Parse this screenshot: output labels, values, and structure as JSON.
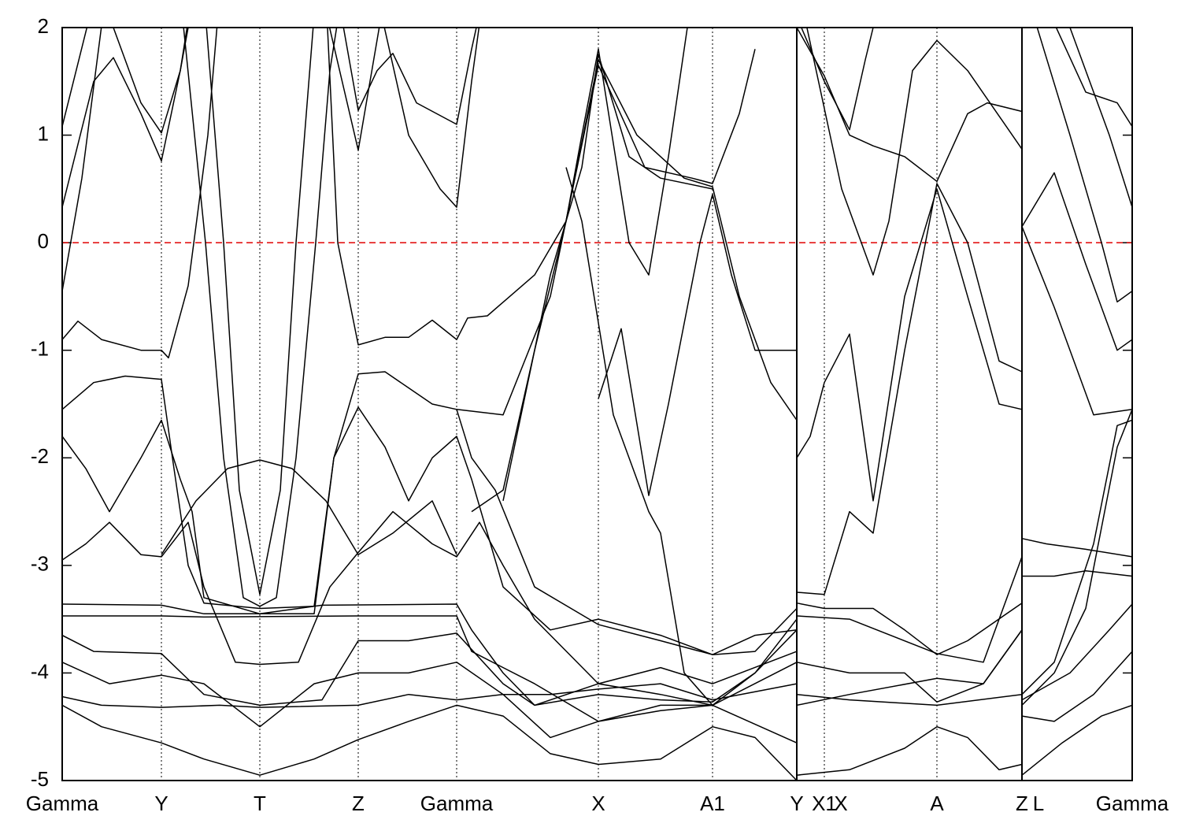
{
  "chart_data": {
    "type": "bands",
    "color": "#000000",
    "fermi_level": 0,
    "fermi_color": "#e00000",
    "xlim": [
      0,
      1359
    ],
    "ylim": [
      -5,
      2
    ],
    "yticks": [
      2,
      1,
      0,
      -1,
      -2,
      -3,
      -4,
      -5
    ],
    "xticks": [
      {
        "value": 0,
        "label": "Gamma"
      },
      {
        "value": 126,
        "label": "Y"
      },
      {
        "value": 251,
        "label": "T"
      },
      {
        "value": 376,
        "label": "Z"
      },
      {
        "value": 501,
        "label": "Gamma"
      },
      {
        "value": 681,
        "label": "X"
      },
      {
        "value": 826,
        "label": "A1"
      },
      {
        "value": 933,
        "label": "Y"
      },
      {
        "value": 968,
        "label": "X1"
      },
      {
        "value": 1111,
        "label": "A"
      },
      {
        "value": 1219,
        "label": "Z"
      },
      {
        "value": 1359,
        "label": "Gamma"
      }
    ],
    "extra_labels": [
      {
        "value": 1240,
        "label": "L"
      },
      {
        "value": 989,
        "label": "X"
      }
    ],
    "breaks": [
      933,
      1219
    ],
    "series": [
      {
        "x": [
          180,
          205,
          225,
          251,
          277,
          297,
          322
        ],
        "values": [
          2.3,
          0,
          -2.3,
          -3.27,
          -2.3,
          0,
          2.3
        ]
      },
      {
        "x": [
          150,
          182,
          205,
          230,
          251,
          272,
          297,
          322,
          340,
          355
        ],
        "values": [
          2.3,
          0,
          -2.0,
          -3.3,
          -3.38,
          -3.3,
          -2.0,
          0,
          1.6,
          2.3
        ]
      },
      {
        "x": [
          0,
          45,
          100,
          126,
          150,
          170
        ],
        "values": [
          1.08,
          2.4,
          1.3,
          1.02,
          1.6,
          2.4
        ]
      },
      {
        "x": [
          0,
          40,
          65,
          100,
          126,
          150,
          165
        ],
        "values": [
          0.33,
          1.5,
          1.72,
          1.2,
          0.76,
          1.6,
          2.3
        ]
      },
      {
        "x": [
          350,
          376,
          400,
          420,
          450,
          501,
          520,
          535
        ],
        "values": [
          2.3,
          1.23,
          1.6,
          1.76,
          1.3,
          1.1,
          1.8,
          2.3
        ]
      },
      {
        "x": [
          330,
          376,
          405
        ],
        "values": [
          2.3,
          0.86,
          2.1
        ]
      },
      {
        "x": [
          0,
          25,
          55
        ],
        "values": [
          -0.45,
          0.6,
          2.3
        ]
      },
      {
        "x": [
          335,
          350,
          376,
          410,
          440,
          470,
          501,
          515,
          540,
          600,
          640,
          681,
          730,
          790,
          826,
          860,
          900,
          933
        ],
        "values": [
          2.3,
          0,
          -0.95,
          -0.88,
          -0.88,
          -0.72,
          -0.9,
          -0.7,
          -0.68,
          -0.3,
          0.2,
          1.7,
          1.0,
          0.6,
          0.52,
          -0.5,
          -1.3,
          -1.65
        ]
      },
      {
        "x": [
          400,
          440,
          480,
          501,
          520,
          535
        ],
        "values": [
          2.3,
          1.0,
          0.5,
          0.33,
          1.5,
          2.3
        ]
      },
      {
        "x": [
          0,
          20,
          50,
          100,
          126,
          135,
          160,
          185,
          200
        ],
        "values": [
          -0.9,
          -0.73,
          -0.9,
          -1.0,
          -1.0,
          -1.07,
          -0.4,
          1.0,
          2.3
        ]
      },
      {
        "x": [
          0,
          40,
          80,
          126,
          140,
          160,
          180,
          251,
          320,
          345,
          376,
          410,
          440,
          470,
          501,
          520,
          550,
          600,
          681,
          760,
          826,
          880,
          933
        ],
        "values": [
          -1.55,
          -1.3,
          -1.24,
          -1.27,
          -2.0,
          -3.0,
          -3.35,
          -3.4,
          -3.38,
          -2.0,
          -1.22,
          -1.2,
          -1.35,
          -1.5,
          -1.55,
          -2.0,
          -2.3,
          -3.2,
          -3.55,
          -3.7,
          -3.83,
          -3.65,
          -3.6
        ]
      },
      {
        "x": [
          0,
          30,
          60,
          100,
          126,
          150,
          165,
          180,
          251,
          320,
          345,
          376,
          410,
          440,
          470,
          501,
          520,
          560,
          620,
          681,
          760,
          826,
          880,
          933
        ],
        "values": [
          -1.8,
          -2.1,
          -2.5,
          -2.0,
          -1.65,
          -2.2,
          -2.5,
          -3.3,
          -3.45,
          -3.45,
          -2.0,
          -1.53,
          -1.9,
          -2.4,
          -2.0,
          -1.8,
          -2.2,
          -3.2,
          -3.6,
          -3.5,
          -3.65,
          -3.83,
          -3.8,
          -3.4
        ]
      },
      {
        "x": [
          126,
          170,
          210,
          251,
          292,
          335,
          376,
          420,
          470,
          501
        ],
        "values": [
          -2.9,
          -2.4,
          -2.1,
          -2.02,
          -2.1,
          -2.4,
          -2.9,
          -2.7,
          -2.4,
          -2.9
        ]
      },
      {
        "x": [
          0,
          30,
          60,
          100,
          126,
          160,
          180,
          220,
          251,
          300,
          340,
          376,
          420,
          470,
          501,
          530,
          560,
          600,
          681,
          760,
          826,
          933
        ],
        "values": [
          -2.95,
          -2.8,
          -2.6,
          -2.9,
          -2.92,
          -2.6,
          -3.2,
          -3.9,
          -3.92,
          -3.9,
          -3.2,
          -2.88,
          -2.5,
          -2.8,
          -2.92,
          -2.6,
          -3.0,
          -3.5,
          -4.1,
          -3.95,
          -4.1,
          -3.8
        ]
      },
      {
        "x": [
          0,
          126,
          180,
          251,
          330,
          501,
          520,
          560,
          600,
          681,
          760,
          826,
          880,
          933
        ],
        "values": [
          -3.36,
          -3.37,
          -3.45,
          -3.45,
          -3.37,
          -3.36,
          -3.6,
          -4.0,
          -4.3,
          -4.2,
          -4.25,
          -4.27,
          -4.0,
          -3.5
        ]
      },
      {
        "x": [
          0,
          126,
          180,
          376,
          501,
          520,
          600,
          681,
          760,
          826,
          880,
          933
        ],
        "values": [
          -3.47,
          -3.47,
          -3.48,
          -3.47,
          -3.47,
          -3.8,
          -4.1,
          -4.45,
          -4.3,
          -4.3,
          -4.0,
          -3.6
        ]
      },
      {
        "x": [
          0,
          40,
          126,
          180,
          251,
          330,
          376,
          440,
          501,
          560,
          600,
          681,
          760,
          826,
          933
        ],
        "values": [
          -3.65,
          -3.8,
          -3.82,
          -4.2,
          -4.3,
          -4.25,
          -3.7,
          -3.7,
          -3.63,
          -4.1,
          -4.3,
          -4.1,
          -4.2,
          -4.3,
          -3.9
        ]
      },
      {
        "x": [
          0,
          60,
          126,
          180,
          251,
          320,
          376,
          440,
          501,
          560,
          620,
          681,
          760,
          826,
          933
        ],
        "values": [
          -3.9,
          -4.1,
          -4.02,
          -4.1,
          -4.5,
          -4.1,
          -4.0,
          -4.0,
          -3.9,
          -4.2,
          -4.6,
          -4.45,
          -4.35,
          -4.3,
          -4.65
        ]
      },
      {
        "x": [
          0,
          50,
          126,
          200,
          251,
          376,
          440,
          501,
          560,
          620,
          681,
          760,
          826,
          933
        ],
        "values": [
          -4.22,
          -4.3,
          -4.32,
          -4.3,
          -4.32,
          -4.3,
          -4.2,
          -4.25,
          -4.2,
          -4.2,
          -4.15,
          -4.1,
          -4.25,
          -4.1
        ]
      },
      {
        "x": [
          0,
          50,
          126,
          180,
          251,
          320,
          376,
          440,
          501,
          560,
          620,
          681,
          760,
          826,
          880,
          933
        ],
        "values": [
          -4.3,
          -4.5,
          -4.65,
          -4.8,
          -4.95,
          -4.8,
          -4.62,
          -4.45,
          -4.3,
          -4.4,
          -4.75,
          -4.85,
          -4.8,
          -4.5,
          -4.6,
          -5
        ]
      },
      {
        "x": [
          501,
          560,
          620,
          681,
          740,
          800,
          826,
          860,
          880
        ],
        "values": [
          -1.55,
          -1.6,
          -0.5,
          1.65,
          0.7,
          0.6,
          0.55,
          1.2,
          1.8
        ]
      },
      {
        "x": [
          560,
          620,
          660,
          681,
          720,
          760,
          826
        ],
        "values": [
          -2.4,
          -0.3,
          0.7,
          1.75,
          0.8,
          0.6,
          0.5
        ]
      },
      {
        "x": [
          681,
          710,
          745,
          770,
          810,
          826,
          850,
          880,
          933
        ],
        "values": [
          -1.45,
          -0.8,
          -2.35,
          -1.5,
          0.0,
          0.45,
          -0.3,
          -1.0,
          -1.0
        ]
      },
      {
        "x": [
          640,
          660,
          700,
          745,
          760,
          790,
          826
        ],
        "values": [
          0.7,
          0.2,
          -1.6,
          -2.5,
          -2.7,
          -4.0,
          -4.3
        ]
      },
      {
        "x": [
          520,
          560,
          600,
          640,
          660,
          681,
          720,
          745,
          770,
          800
        ],
        "values": [
          -2.5,
          -2.3,
          -1.0,
          0.2,
          1.0,
          1.8,
          0.0,
          -0.3,
          0.8,
          2.3
        ]
      },
      {
        "x": [
          933,
          950,
          968,
          1000,
          1030,
          1070,
          1111,
          1150,
          1190,
          1219
        ],
        "values": [
          -2.0,
          -1.8,
          -1.3,
          -0.85,
          -2.4,
          -0.5,
          0.5,
          -0.5,
          -1.5,
          -1.55
        ]
      },
      {
        "x": [
          933,
          968,
          1000,
          1030,
          1070,
          1111,
          1150,
          1190,
          1219
        ],
        "values": [
          -3.25,
          -3.27,
          -2.5,
          -2.7,
          -1.0,
          0.55,
          0.0,
          -1.1,
          -1.2
        ]
      },
      {
        "x": [
          933,
          968,
          1000,
          1020,
          1040
        ],
        "values": [
          2.1,
          1.5,
          1.05,
          1.7,
          2.3
        ]
      },
      {
        "x": [
          933,
          968,
          1000,
          1030,
          1070,
          1111,
          1150,
          1175,
          1219
        ],
        "values": [
          2.0,
          1.55,
          1.0,
          0.9,
          0.8,
          0.57,
          1.2,
          1.3,
          1.22
        ]
      },
      {
        "x": [
          940,
          990,
          1030,
          1050,
          1080,
          1111,
          1150,
          1219
        ],
        "values": [
          2.2,
          0.5,
          -0.3,
          0.2,
          1.6,
          1.88,
          1.6,
          0.87
        ]
      },
      {
        "x": [
          933,
          968,
          1030,
          1070,
          1111,
          1150,
          1219
        ],
        "values": [
          -3.35,
          -3.4,
          -3.4,
          -3.6,
          -3.83,
          -3.7,
          -3.35
        ]
      },
      {
        "x": [
          933,
          1000,
          1111,
          1170,
          1219
        ],
        "values": [
          -3.47,
          -3.5,
          -3.82,
          -3.9,
          -2.92
        ]
      },
      {
        "x": [
          933,
          1000,
          1070,
          1111,
          1170,
          1219
        ],
        "values": [
          -3.9,
          -4.0,
          -4.0,
          -4.27,
          -4.1,
          -3.6
        ]
      },
      {
        "x": [
          933,
          1000,
          1111,
          1219
        ],
        "values": [
          -4.2,
          -4.25,
          -4.3,
          -4.2
        ]
      },
      {
        "x": [
          933,
          1000,
          1070,
          1111,
          1150,
          1190,
          1219
        ],
        "values": [
          -4.95,
          -4.9,
          -4.7,
          -4.5,
          -4.6,
          -4.9,
          -4.85
        ]
      },
      {
        "x": [
          933,
          1000,
          1111,
          1170,
          1219
        ],
        "values": [
          -4.3,
          -4.2,
          -4.05,
          -4.1,
          -3.6
        ]
      },
      {
        "x": [
          1219,
          1260,
          1300,
          1340,
          1359
        ],
        "values": [
          0.15,
          0.65,
          -0.2,
          -1.0,
          -0.9
        ]
      },
      {
        "x": [
          1219,
          1260,
          1310,
          1359
        ],
        "values": [
          0.15,
          -0.6,
          -1.6,
          -1.55
        ]
      },
      {
        "x": [
          1230,
          1280,
          1320,
          1340,
          1359
        ],
        "values": [
          2.2,
          1.0,
          0.0,
          -0.55,
          -0.45
        ]
      },
      {
        "x": [
          1250,
          1300,
          1340,
          1359
        ],
        "values": [
          2.2,
          1.4,
          1.3,
          1.08
        ]
      },
      {
        "x": [
          1270,
          1330,
          1359
        ],
        "values": [
          2.2,
          1.0,
          0.33
        ]
      },
      {
        "x": [
          1219,
          1250,
          1300,
          1359
        ],
        "values": [
          -2.75,
          -2.8,
          -2.85,
          -2.92
        ]
      },
      {
        "x": [
          1219,
          1260,
          1300,
          1359
        ],
        "values": [
          -3.1,
          -3.1,
          -3.05,
          -3.1
        ]
      },
      {
        "x": [
          1219,
          1260,
          1310,
          1340,
          1359
        ],
        "values": [
          -4.2,
          -3.9,
          -2.8,
          -1.7,
          -1.65
        ]
      },
      {
        "x": [
          1219,
          1260,
          1300,
          1340,
          1359
        ],
        "values": [
          -4.3,
          -4.0,
          -3.4,
          -1.9,
          -1.55
        ]
      },
      {
        "x": [
          1219,
          1260,
          1310,
          1359
        ],
        "values": [
          -4.4,
          -4.45,
          -4.2,
          -3.8
        ]
      },
      {
        "x": [
          1219,
          1270,
          1320,
          1359
        ],
        "values": [
          -4.95,
          -4.65,
          -4.4,
          -4.3
        ]
      },
      {
        "x": [
          1219,
          1280,
          1330,
          1359
        ],
        "values": [
          -4.25,
          -4.0,
          -3.6,
          -3.36
        ]
      }
    ]
  }
}
